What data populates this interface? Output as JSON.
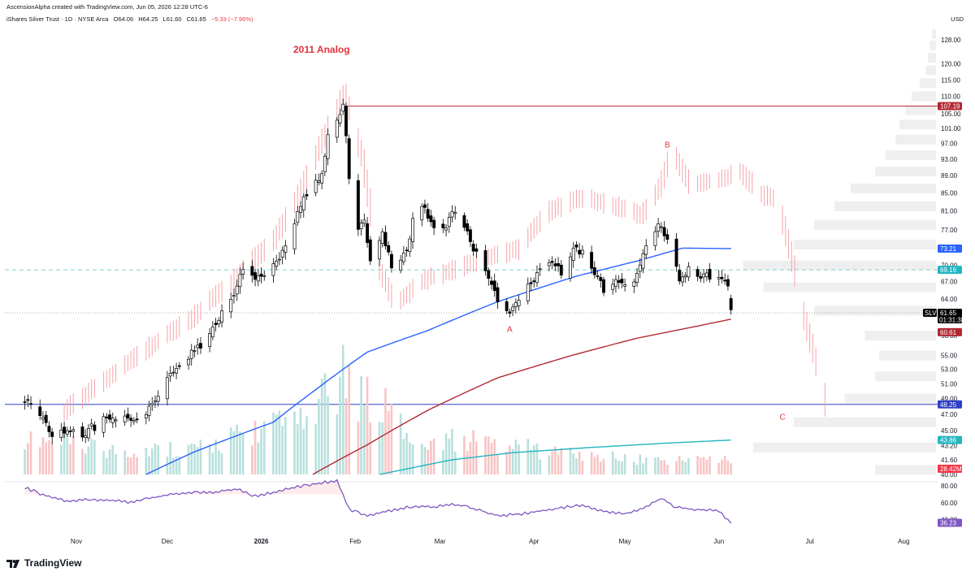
{
  "header": {
    "attribution": "AscensionAlpha created with TradingView.com, Jun 05, 2026 12:28 UTC-6",
    "symbol": "iShares Silver Trust · 1D · NYSE Arca",
    "open": "O64.06",
    "high": "H64.25",
    "low": "L61.60",
    "close": "C61.65",
    "change": "−5.33 (−7.96%)",
    "currency": "USD"
  },
  "footer": {
    "brand": "TradingView"
  },
  "colors": {
    "up_candle": "#ffffff",
    "down_candle": "#000000",
    "analog": "#f5a3a8",
    "ma_blue": "#2962ff",
    "ma_red": "#b22833",
    "ma_teal": "#22b5c0",
    "rsi": "#7e57c2",
    "horizontal_red": "#b22833",
    "horizontal_blue": "#2f3fc4",
    "dashed_cyan": "#7fd3d3",
    "volume_up": "#b8e0dc",
    "volume_down": "#f8c4c4",
    "annotation": "#e0323d"
  },
  "chart_data": {
    "type": "candlestick",
    "title": "2011 Analog",
    "annotations": [
      {
        "label": "A",
        "date": "2026-03-24",
        "price": 58.6
      },
      {
        "label": "B",
        "date": "2026-05-15",
        "price": 96.0
      },
      {
        "label": "C",
        "date": "2026-06-22",
        "price": 46.3
      }
    ],
    "x_tick_labels": [
      "Nov",
      "Dec",
      "2026",
      "Feb",
      "Mar",
      "Apr",
      "May",
      "Jun",
      "Jul",
      "Aug"
    ],
    "y_tick_labels": [
      "128.00",
      "120.00",
      "115.00",
      "110.00",
      "105.00",
      "101.00",
      "97.00",
      "93.00",
      "89.00",
      "85.00",
      "81.00",
      "77.00",
      "70.00",
      "67.00",
      "64.00",
      "58.00",
      "55.00",
      "53.00",
      "51.00",
      "49.00",
      "47.00",
      "45.00",
      "43.20",
      "41.60",
      "40.00"
    ],
    "ylim": [
      39.5,
      132
    ],
    "price_tags": [
      {
        "label": "107.19",
        "color": "#b22833"
      },
      {
        "label": "73.21",
        "color": "#2962ff"
      },
      {
        "label": "69.16",
        "color": "#22b5c0"
      },
      {
        "label": "61.65",
        "color": "#000000",
        "symbol": "SLV",
        "countdown": "01:31:38"
      },
      {
        "label": "60.61",
        "color": "#b22833"
      },
      {
        "label": "48.25",
        "color": "#2f3fc4"
      },
      {
        "label": "43.86",
        "color": "#22b5c0"
      },
      {
        "label": "28.42M",
        "color": "#f23645"
      }
    ],
    "horizontal_lines": [
      {
        "price": 107.19,
        "style": "solid",
        "color": "#b22833"
      },
      {
        "price": 69.16,
        "style": "dashed",
        "color": "#7fd3d3"
      },
      {
        "price": 48.25,
        "style": "solid",
        "color": "#2f3fc4"
      },
      {
        "price": 61.65,
        "style": "dotted",
        "color": "#9598a1"
      }
    ],
    "price_anchors": [
      [
        "2025-10-15",
        49.0
      ],
      [
        "2025-10-20",
        47.2
      ],
      [
        "2025-10-24",
        44.6
      ],
      [
        "2025-10-29",
        45.3
      ],
      [
        "2025-11-03",
        44.6
      ],
      [
        "2025-11-07",
        45.5
      ],
      [
        "2025-11-12",
        46.8
      ],
      [
        "2025-11-17",
        46.9
      ],
      [
        "2025-11-21",
        46.0
      ],
      [
        "2025-11-26",
        48.0
      ],
      [
        "2025-12-02",
        52.6
      ],
      [
        "2025-12-05",
        53.3
      ],
      [
        "2025-12-10",
        55.6
      ],
      [
        "2025-12-15",
        58.3
      ],
      [
        "2025-12-19",
        61.5
      ],
      [
        "2025-12-23",
        64.8
      ],
      [
        "2025-12-26",
        69.0
      ],
      [
        "2025-12-30",
        67.2
      ],
      [
        "2026-01-05",
        70.0
      ],
      [
        "2026-01-09",
        73.5
      ],
      [
        "2026-01-13",
        80.5
      ],
      [
        "2026-01-16",
        84.5
      ],
      [
        "2026-01-21",
        89.5
      ],
      [
        "2026-01-23",
        98.3
      ],
      [
        "2026-01-26",
        103.5
      ],
      [
        "2026-01-28",
        107.5
      ],
      [
        "2026-01-30",
        88.5
      ],
      [
        "2026-02-02",
        76.5
      ],
      [
        "2026-02-04",
        79.5
      ],
      [
        "2026-02-06",
        71.0
      ],
      [
        "2026-02-10",
        77.0
      ],
      [
        "2026-02-13",
        69.5
      ],
      [
        "2026-02-18",
        72.5
      ],
      [
        "2026-02-20",
        79.5
      ],
      [
        "2026-02-24",
        82.0
      ],
      [
        "2026-02-27",
        77.0
      ],
      [
        "2026-03-03",
        78.0
      ],
      [
        "2026-03-06",
        81.0
      ],
      [
        "2026-03-10",
        76.0
      ],
      [
        "2026-03-13",
        72.0
      ],
      [
        "2026-03-17",
        68.0
      ],
      [
        "2026-03-20",
        63.0
      ],
      [
        "2026-03-24",
        61.2
      ],
      [
        "2026-03-27",
        64.5
      ],
      [
        "2026-04-01",
        67.5
      ],
      [
        "2026-04-06",
        71.0
      ],
      [
        "2026-04-10",
        68.5
      ],
      [
        "2026-04-15",
        73.5
      ],
      [
        "2026-04-20",
        70.0
      ],
      [
        "2026-04-24",
        65.5
      ],
      [
        "2026-04-29",
        67.0
      ],
      [
        "2026-05-04",
        67.5
      ],
      [
        "2026-05-08",
        73.0
      ],
      [
        "2026-05-12",
        78.0
      ],
      [
        "2026-05-15",
        75.5
      ],
      [
        "2026-05-19",
        67.5
      ],
      [
        "2026-05-22",
        69.0
      ],
      [
        "2026-05-27",
        68.0
      ],
      [
        "2026-06-01",
        67.5
      ],
      [
        "2026-06-04",
        67.0
      ],
      [
        "2026-06-05",
        61.65
      ]
    ],
    "analog_anchors": [
      [
        "2025-10-28",
        47.5
      ],
      [
        "2025-11-10",
        51.5
      ],
      [
        "2025-11-24",
        56.0
      ],
      [
        "2025-12-08",
        60.5
      ],
      [
        "2025-12-22",
        67.0
      ],
      [
        "2026-01-05",
        75.0
      ],
      [
        "2026-01-14",
        86.0
      ],
      [
        "2026-01-22",
        100.0
      ],
      [
        "2026-01-28",
        111.0
      ],
      [
        "2026-02-03",
        93.0
      ],
      [
        "2026-02-08",
        70.0
      ],
      [
        "2026-02-14",
        63.0
      ],
      [
        "2026-02-22",
        67.0
      ],
      [
        "2026-03-04",
        69.0
      ],
      [
        "2026-03-14",
        71.0
      ],
      [
        "2026-03-26",
        73.0
      ],
      [
        "2026-04-06",
        81.0
      ],
      [
        "2026-04-16",
        84.0
      ],
      [
        "2026-04-28",
        82.0
      ],
      [
        "2026-05-06",
        80.0
      ],
      [
        "2026-05-12",
        86.0
      ],
      [
        "2026-05-16",
        95.0
      ],
      [
        "2026-05-22",
        87.0
      ],
      [
        "2026-06-01",
        88.0
      ],
      [
        "2026-06-08",
        90.0
      ],
      [
        "2026-06-14",
        85.0
      ],
      [
        "2026-06-20",
        83.0
      ],
      [
        "2026-06-24",
        73.0
      ],
      [
        "2026-06-28",
        62.0
      ],
      [
        "2026-07-02",
        55.0
      ],
      [
        "2026-07-06",
        48.0
      ]
    ],
    "ma_blue": [
      [
        "2025-11-24",
        40.0
      ],
      [
        "2025-12-10",
        42.5
      ],
      [
        "2026-01-05",
        46.0
      ],
      [
        "2026-01-20",
        50.5
      ],
      [
        "2026-02-05",
        55.5
      ],
      [
        "2026-02-25",
        58.8
      ],
      [
        "2026-03-20",
        63.5
      ],
      [
        "2026-04-15",
        68.0
      ],
      [
        "2026-05-05",
        70.8
      ],
      [
        "2026-05-20",
        73.3
      ],
      [
        "2026-06-05",
        73.21
      ]
    ],
    "ma_red": [
      [
        "2026-01-18",
        40.0
      ],
      [
        "2026-02-05",
        43.3
      ],
      [
        "2026-02-25",
        47.5
      ],
      [
        "2026-03-20",
        51.8
      ],
      [
        "2026-04-15",
        55.2
      ],
      [
        "2026-05-05",
        57.6
      ],
      [
        "2026-05-25",
        59.5
      ],
      [
        "2026-06-05",
        60.61
      ]
    ],
    "ma_teal": [
      [
        "2026-02-09",
        40.0
      ],
      [
        "2026-03-05",
        41.6
      ],
      [
        "2026-03-25",
        42.4
      ],
      [
        "2026-04-20",
        43.0
      ],
      [
        "2026-05-15",
        43.5
      ],
      [
        "2026-06-05",
        43.86
      ]
    ],
    "volume": {
      "last_label": "28.42M",
      "relative_anchors": [
        [
          "2025-10-15",
          0.35
        ],
        [
          "2025-11-15",
          0.25
        ],
        [
          "2025-12-15",
          0.3
        ],
        [
          "2025-12-28",
          0.45
        ],
        [
          "2026-01-15",
          0.55
        ],
        [
          "2026-01-28",
          1.0
        ],
        [
          "2026-02-05",
          0.85
        ],
        [
          "2026-02-20",
          0.4
        ],
        [
          "2026-03-15",
          0.35
        ],
        [
          "2026-04-15",
          0.2
        ],
        [
          "2026-05-15",
          0.15
        ],
        [
          "2026-06-05",
          0.18
        ]
      ]
    },
    "rsi": {
      "last": "36.23",
      "y_tick_labels": [
        "80.00",
        "60.00",
        "40.00"
      ],
      "ylim": [
        28,
        92
      ],
      "anchors": [
        [
          "2025-10-15",
          78
        ],
        [
          "2025-10-22",
          68
        ],
        [
          "2025-10-29",
          62
        ],
        [
          "2025-11-05",
          64
        ],
        [
          "2025-11-12",
          63
        ],
        [
          "2025-11-19",
          60
        ],
        [
          "2025-11-26",
          66
        ],
        [
          "2025-12-03",
          70
        ],
        [
          "2025-12-10",
          72
        ],
        [
          "2025-12-17",
          73
        ],
        [
          "2025-12-24",
          76
        ],
        [
          "2025-12-30",
          68
        ],
        [
          "2026-01-06",
          73
        ],
        [
          "2026-01-13",
          79
        ],
        [
          "2026-01-20",
          83
        ],
        [
          "2026-01-26",
          86
        ],
        [
          "2026-01-30",
          52
        ],
        [
          "2026-02-05",
          45
        ],
        [
          "2026-02-12",
          50
        ],
        [
          "2026-02-20",
          56
        ],
        [
          "2026-02-27",
          55
        ],
        [
          "2026-03-06",
          58
        ],
        [
          "2026-03-13",
          52
        ],
        [
          "2026-03-20",
          45
        ],
        [
          "2026-03-27",
          46
        ],
        [
          "2026-04-03",
          50
        ],
        [
          "2026-04-10",
          54
        ],
        [
          "2026-04-17",
          57
        ],
        [
          "2026-04-24",
          50
        ],
        [
          "2026-05-01",
          46
        ],
        [
          "2026-05-08",
          55
        ],
        [
          "2026-05-13",
          65
        ],
        [
          "2026-05-18",
          54
        ],
        [
          "2026-05-25",
          52
        ],
        [
          "2026-06-01",
          50
        ],
        [
          "2026-06-05",
          36.23
        ]
      ]
    },
    "volume_profile": {
      "relative_rows": [
        [
          130,
          0.02
        ],
        [
          126,
          0.03
        ],
        [
          122,
          0.04
        ],
        [
          118,
          0.05
        ],
        [
          114,
          0.08
        ],
        [
          110,
          0.12
        ],
        [
          106,
          0.15
        ],
        [
          102,
          0.18
        ],
        [
          98,
          0.2
        ],
        [
          94,
          0.25
        ],
        [
          90,
          0.3
        ],
        [
          86,
          0.42
        ],
        [
          82,
          0.5
        ],
        [
          78,
          0.6
        ],
        [
          74,
          0.7
        ],
        [
          70,
          0.95
        ],
        [
          66,
          0.85
        ],
        [
          62,
          0.6
        ],
        [
          58,
          0.35
        ],
        [
          55,
          0.28
        ],
        [
          52,
          0.3
        ],
        [
          49,
          0.45
        ],
        [
          46,
          0.7
        ],
        [
          43,
          0.9
        ],
        [
          40.5,
          0.3
        ]
      ]
    }
  }
}
